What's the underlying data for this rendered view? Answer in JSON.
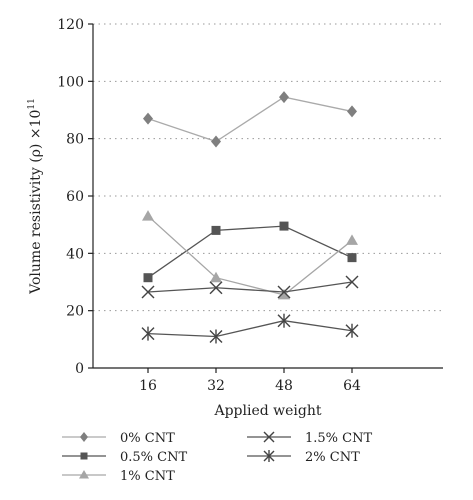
{
  "chart_data": {
    "type": "line",
    "xlabel": "Applied weight",
    "ylabel": "Volume resistivity (ρ) ×10",
    "ylabel_sup": "11",
    "categories": [
      "16",
      "32",
      "48",
      "64"
    ],
    "ylim": [
      0,
      120
    ],
    "yticks": [
      "0",
      "20",
      "40",
      "60",
      "80",
      "100",
      "120"
    ],
    "grid": "horizontal dotted",
    "legend_position": "bottom",
    "series": [
      {
        "name": "0% CNT",
        "values": [
          87,
          79,
          94.5,
          89.5
        ],
        "color": "#7f7f7f",
        "line_color": "#aaaaaa",
        "marker": "diamond"
      },
      {
        "name": "0.5% CNT",
        "values": [
          31.5,
          48,
          49.5,
          38.5
        ],
        "color": "#555555",
        "line_color": "#555555",
        "marker": "square"
      },
      {
        "name": "1% CNT",
        "values": [
          53,
          31.5,
          25.5,
          44.5
        ],
        "color": "#a6a6a6",
        "line_color": "#a6a6a6",
        "marker": "triangle"
      },
      {
        "name": "1.5% CNT",
        "values": [
          26.5,
          28,
          26.5,
          30
        ],
        "color": "#444444",
        "line_color": "#555555",
        "marker": "x"
      },
      {
        "name": "2% CNT",
        "values": [
          12,
          11,
          16.5,
          13
        ],
        "color": "#444444",
        "line_color": "#555555",
        "marker": "star"
      }
    ]
  }
}
